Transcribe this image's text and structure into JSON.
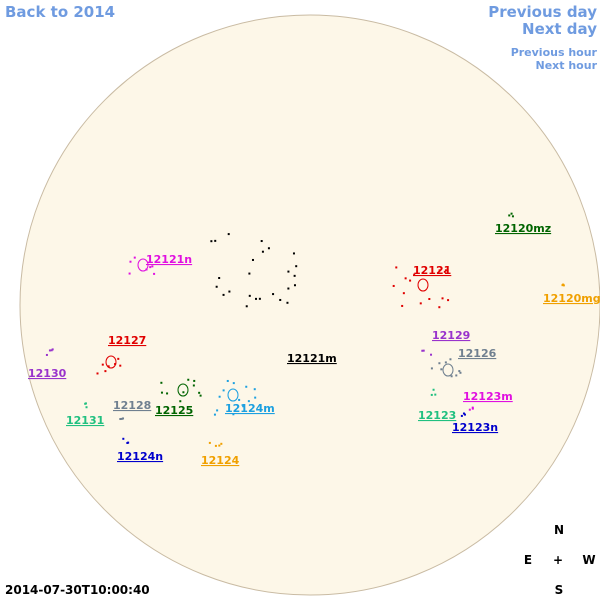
{
  "links": {
    "back": "Back to 2014",
    "previous_day": "Previous day",
    "next_day": "Next day",
    "previous_hour": "Previous hour",
    "next_hour": "Next hour"
  },
  "regions": [
    {
      "label": "12120mz",
      "color": "#006400"
    },
    {
      "label": "12121n",
      "color": "#e010e0"
    },
    {
      "label": "12121",
      "color": "#e00000"
    },
    {
      "label": "12120mg",
      "color": "#f0a000"
    },
    {
      "label": "12129",
      "color": "#9933cc"
    },
    {
      "label": "12127",
      "color": "#e00000"
    },
    {
      "label": "12121m",
      "color": "#000000"
    },
    {
      "label": "12126",
      "color": "#708090"
    },
    {
      "label": "12130",
      "color": "#9933cc"
    },
    {
      "label": "12128",
      "color": "#708090"
    },
    {
      "label": "12125",
      "color": "#006400"
    },
    {
      "label": "12124m",
      "color": "#1ca0e0"
    },
    {
      "label": "12123m",
      "color": "#e010e0"
    },
    {
      "label": "12131",
      "color": "#20c080"
    },
    {
      "label": "12123",
      "color": "#20c080"
    },
    {
      "label": "12123n",
      "color": "#0000cc"
    },
    {
      "label": "12124n",
      "color": "#0000cc"
    },
    {
      "label": "12124",
      "color": "#f0a000"
    }
  ],
  "compass": {
    "north": "N",
    "east": "E",
    "center": "+",
    "west": "W",
    "south": "S"
  },
  "timestamp": "2014-07-30T10:00:40"
}
